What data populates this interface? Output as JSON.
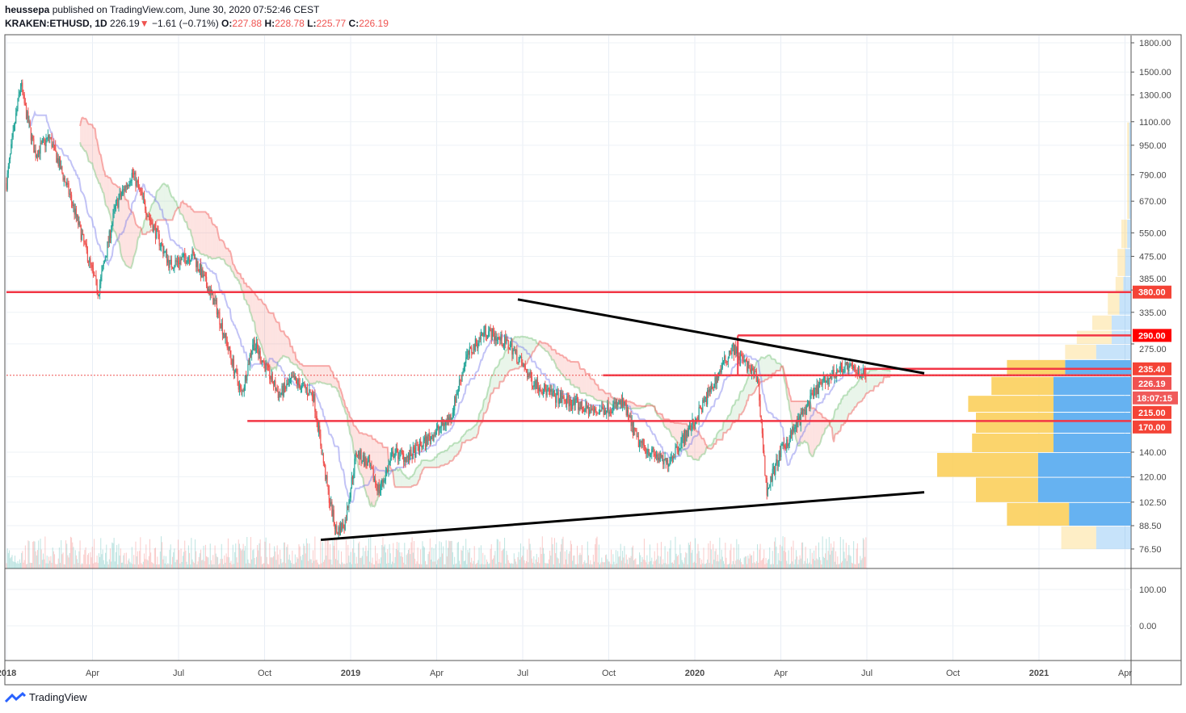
{
  "header": {
    "publisher": "heussepa",
    "published_text": "published on TradingView.com, June 30, 2020 07:52:46 CEST",
    "symbol": "KRAKEN:ETHUSD, 1D",
    "last": "226.19",
    "change": "−1.61 (−0.71%)",
    "o_label": "O:",
    "o": "227.88",
    "h_label": "H:",
    "h": "228.78",
    "l_label": "L:",
    "l": "225.77",
    "c_label": "C:",
    "c": "226.19"
  },
  "footer": {
    "logo_text": "TradingView"
  },
  "colors": {
    "up": "#26a69a",
    "down": "#ef5350",
    "level": "#f23645",
    "trend": "#000000",
    "vp_up": "#5eaef0",
    "vp_down": "#fbcf5c"
  },
  "chart_data": {
    "type": "candlestick",
    "scale": "log",
    "ylim": [
      70,
      1950
    ],
    "y_ticks": [
      "1800.00",
      "1500.00",
      "1300.00",
      "1100.00",
      "950.00",
      "790.00",
      "670.00",
      "550.00",
      "475.00",
      "385.00",
      "335.00",
      "275.00",
      "140.00",
      "120.00",
      "102.50",
      "88.50",
      "76.50"
    ],
    "x_ticks": [
      {
        "m": 0,
        "label": "2018"
      },
      {
        "m": 3,
        "label": "Apr"
      },
      {
        "m": 6,
        "label": "Jul"
      },
      {
        "m": 9,
        "label": "Oct"
      },
      {
        "m": 12,
        "label": "2019"
      },
      {
        "m": 15,
        "label": "Apr"
      },
      {
        "m": 18,
        "label": "Jul"
      },
      {
        "m": 21,
        "label": "Oct"
      },
      {
        "m": 24,
        "label": "2020"
      },
      {
        "m": 27,
        "label": "Apr"
      },
      {
        "m": 30,
        "label": "Jul"
      },
      {
        "m": 33,
        "label": "Oct"
      },
      {
        "m": 36,
        "label": "2021"
      },
      {
        "m": 39,
        "label": "Apr"
      }
    ],
    "price_path_months": [
      [
        0,
        750
      ],
      [
        0.3,
        1100
      ],
      [
        0.5,
        1400
      ],
      [
        0.6,
        1250
      ],
      [
        1,
        900
      ],
      [
        1.5,
        1000
      ],
      [
        2.2,
        700
      ],
      [
        3.2,
        380
      ],
      [
        3.8,
        650
      ],
      [
        4.4,
        800
      ],
      [
        5,
        600
      ],
      [
        5.7,
        450
      ],
      [
        6.5,
        480
      ],
      [
        7.3,
        350
      ],
      [
        8.2,
        200
      ],
      [
        8.6,
        280
      ],
      [
        9.5,
        200
      ],
      [
        10,
        220
      ],
      [
        10.7,
        200
      ],
      [
        11.2,
        110
      ],
      [
        11.5,
        85
      ],
      [
        11.8,
        90
      ],
      [
        12.2,
        140
      ],
      [
        12.6,
        130
      ],
      [
        13,
        110
      ],
      [
        13.5,
        140
      ],
      [
        14,
        135
      ],
      [
        15,
        160
      ],
      [
        15.5,
        175
      ],
      [
        16,
        250
      ],
      [
        16.7,
        300
      ],
      [
        17.6,
        270
      ],
      [
        18.3,
        220
      ],
      [
        19,
        200
      ],
      [
        20.5,
        180
      ],
      [
        21.5,
        190
      ],
      [
        22,
        150
      ],
      [
        23,
        130
      ],
      [
        24,
        170
      ],
      [
        25.3,
        270
      ],
      [
        26.2,
        220
      ],
      [
        26.5,
        110
      ],
      [
        27,
        140
      ],
      [
        28.3,
        210
      ],
      [
        29.2,
        240
      ],
      [
        30,
        226
      ]
    ],
    "levels": [
      {
        "price": 380,
        "label": "380.00",
        "from_m": 0
      },
      {
        "price": 290,
        "label": "290.00",
        "from_m": 25.5
      },
      {
        "price": 235.4,
        "label": "235.40",
        "from_m": 29.9
      },
      {
        "price": 226.19,
        "label": "226.19",
        "from_m": 20.8
      },
      {
        "price": 215,
        "label": "215.00",
        "from_m": null
      },
      {
        "price": 170,
        "label": "170.00",
        "from_m": 8.4
      }
    ],
    "countdown": "18:07:15",
    "trendlines": [
      {
        "from": [
          17.83,
          363
        ],
        "to": [
          32.0,
          229
        ]
      },
      {
        "from": [
          10.96,
          81
        ],
        "to": [
          32.0,
          109
        ]
      }
    ],
    "volume_profile": [
      [
        76.5,
        88.5,
        0.9,
        0.9
      ],
      [
        88.5,
        102.5,
        1.6,
        1.6
      ],
      [
        102.5,
        120,
        2.4,
        1.6
      ],
      [
        120,
        140,
        2.4,
        2.6
      ],
      [
        140,
        158,
        2.0,
        2.1
      ],
      [
        158,
        180,
        2.0,
        2.0
      ],
      [
        180,
        200,
        2.0,
        2.2
      ],
      [
        200,
        225,
        2.0,
        1.6
      ],
      [
        225,
        250,
        1.7,
        1.5
      ],
      [
        250,
        275,
        0.9,
        0.8
      ],
      [
        275,
        300,
        0.5,
        0.9
      ],
      [
        300,
        330,
        0.5,
        0.5
      ],
      [
        330,
        380,
        0.3,
        0.3
      ],
      [
        380,
        420,
        0.2,
        0.2
      ],
      [
        420,
        500,
        0.15,
        0.2
      ],
      [
        500,
        600,
        0.1,
        0.15
      ],
      [
        600,
        1100,
        0.05,
        0.05
      ]
    ],
    "lower_pane": {
      "y_ticks": [
        "100.00",
        "0.00"
      ]
    }
  }
}
